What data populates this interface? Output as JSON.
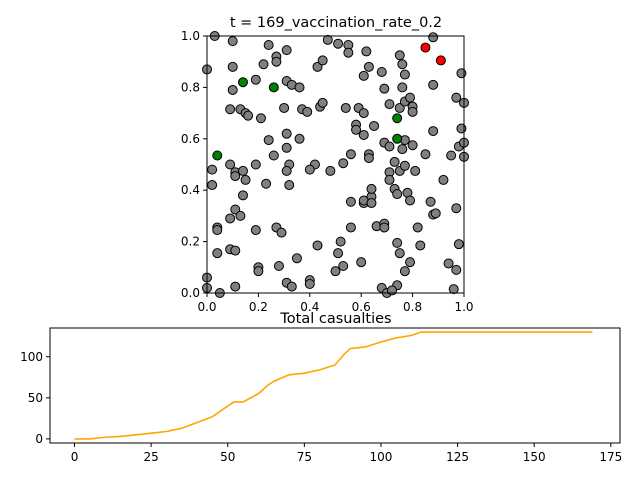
{
  "chart_data": [
    {
      "type": "scatter",
      "title": "t = 169_vaccination_rate_0.2",
      "xlim": [
        0,
        1
      ],
      "ylim": [
        0,
        1
      ],
      "xticks": [
        "0.0",
        "0.2",
        "0.4",
        "0.6",
        "0.8",
        "1.0"
      ],
      "yticks": [
        "0.0",
        "0.2",
        "0.4",
        "0.6",
        "0.8",
        "1.0"
      ],
      "grid": false,
      "colors": {
        "susceptible": "#808080",
        "vaccinated": "#008000",
        "infected": "#ff0000"
      },
      "infected": [
        [
          0.85,
          0.955
        ],
        [
          0.91,
          0.905
        ]
      ],
      "vaccinated": [
        [
          0.14,
          0.82
        ],
        [
          0.26,
          0.8
        ],
        [
          0.74,
          0.68
        ],
        [
          0.04,
          0.535
        ],
        [
          0.74,
          0.6
        ]
      ],
      "susceptible": [
        [
          0.0,
          0.87
        ],
        [
          0.03,
          1.0
        ],
        [
          0.1,
          0.98
        ],
        [
          0.1,
          0.88
        ],
        [
          0.1,
          0.79
        ],
        [
          0.09,
          0.715
        ],
        [
          0.13,
          0.715
        ],
        [
          0.15,
          0.7
        ],
        [
          0.16,
          0.69
        ],
        [
          0.19,
          0.83
        ],
        [
          0.22,
          0.89
        ],
        [
          0.24,
          0.965
        ],
        [
          0.27,
          0.92
        ],
        [
          0.27,
          0.9
        ],
        [
          0.31,
          0.945
        ],
        [
          0.31,
          0.825
        ],
        [
          0.33,
          0.81
        ],
        [
          0.36,
          0.8
        ],
        [
          0.3,
          0.72
        ],
        [
          0.21,
          0.68
        ],
        [
          0.24,
          0.595
        ],
        [
          0.26,
          0.535
        ],
        [
          0.31,
          0.62
        ],
        [
          0.31,
          0.565
        ],
        [
          0.32,
          0.5
        ],
        [
          0.31,
          0.475
        ],
        [
          0.32,
          0.42
        ],
        [
          0.36,
          0.6
        ],
        [
          0.37,
          0.715
        ],
        [
          0.39,
          0.705
        ],
        [
          0.43,
          0.88
        ],
        [
          0.45,
          0.905
        ],
        [
          0.44,
          0.725
        ],
        [
          0.45,
          0.74
        ],
        [
          0.47,
          0.985
        ],
        [
          0.51,
          0.97
        ],
        [
          0.55,
          0.965
        ],
        [
          0.55,
          0.935
        ],
        [
          0.62,
          0.94
        ],
        [
          0.63,
          0.88
        ],
        [
          0.61,
          0.845
        ],
        [
          0.54,
          0.72
        ],
        [
          0.59,
          0.72
        ],
        [
          0.58,
          0.655
        ],
        [
          0.58,
          0.635
        ],
        [
          0.61,
          0.7
        ],
        [
          0.61,
          0.615
        ],
        [
          0.65,
          0.65
        ],
        [
          0.68,
          0.86
        ],
        [
          0.69,
          0.795
        ],
        [
          0.71,
          0.735
        ],
        [
          0.75,
          0.925
        ],
        [
          0.76,
          0.89
        ],
        [
          0.77,
          0.85
        ],
        [
          0.76,
          0.8
        ],
        [
          0.75,
          0.72
        ],
        [
          0.77,
          0.745
        ],
        [
          0.79,
          0.76
        ],
        [
          0.8,
          0.725
        ],
        [
          0.8,
          0.705
        ],
        [
          0.77,
          0.595
        ],
        [
          0.76,
          0.56
        ],
        [
          0.8,
          0.575
        ],
        [
          0.88,
          0.81
        ],
        [
          0.88,
          0.995
        ],
        [
          0.99,
          0.855
        ],
        [
          0.97,
          0.76
        ],
        [
          1.0,
          0.74
        ],
        [
          0.99,
          0.64
        ],
        [
          0.98,
          0.57
        ],
        [
          1.0,
          0.585
        ],
        [
          0.95,
          0.535
        ],
        [
          1.0,
          0.53
        ],
        [
          0.88,
          0.63
        ],
        [
          0.85,
          0.54
        ],
        [
          0.92,
          0.44
        ],
        [
          0.87,
          0.355
        ],
        [
          0.88,
          0.305
        ],
        [
          0.89,
          0.31
        ],
        [
          0.97,
          0.33
        ],
        [
          0.98,
          0.19
        ],
        [
          0.94,
          0.115
        ],
        [
          0.97,
          0.09
        ],
        [
          0.96,
          0.015
        ],
        [
          0.0,
          0.06
        ],
        [
          0.0,
          0.02
        ],
        [
          0.02,
          0.48
        ],
        [
          0.02,
          0.42
        ],
        [
          0.04,
          0.255
        ],
        [
          0.04,
          0.245
        ],
        [
          0.04,
          0.155
        ],
        [
          0.05,
          0.0
        ],
        [
          0.09,
          0.5
        ],
        [
          0.11,
          0.47
        ],
        [
          0.11,
          0.455
        ],
        [
          0.14,
          0.475
        ],
        [
          0.15,
          0.44
        ],
        [
          0.14,
          0.38
        ],
        [
          0.11,
          0.325
        ],
        [
          0.13,
          0.3
        ],
        [
          0.09,
          0.29
        ],
        [
          0.09,
          0.17
        ],
        [
          0.11,
          0.165
        ],
        [
          0.11,
          0.025
        ],
        [
          0.19,
          0.5
        ],
        [
          0.23,
          0.425
        ],
        [
          0.19,
          0.245
        ],
        [
          0.2,
          0.1
        ],
        [
          0.2,
          0.085
        ],
        [
          0.27,
          0.255
        ],
        [
          0.29,
          0.235
        ],
        [
          0.28,
          0.105
        ],
        [
          0.35,
          0.135
        ],
        [
          0.31,
          0.04
        ],
        [
          0.33,
          0.025
        ],
        [
          0.4,
          0.05
        ],
        [
          0.4,
          0.035
        ],
        [
          0.43,
          0.185
        ],
        [
          0.42,
          0.5
        ],
        [
          0.4,
          0.48
        ],
        [
          0.48,
          0.475
        ],
        [
          0.53,
          0.505
        ],
        [
          0.56,
          0.54
        ],
        [
          0.56,
          0.355
        ],
        [
          0.6,
          0.12
        ],
        [
          0.61,
          0.35
        ],
        [
          0.61,
          0.36
        ],
        [
          0.64,
          0.375
        ],
        [
          0.64,
          0.405
        ],
        [
          0.64,
          0.35
        ],
        [
          0.66,
          0.26
        ],
        [
          0.69,
          0.27
        ],
        [
          0.69,
          0.255
        ],
        [
          0.56,
          0.255
        ],
        [
          0.52,
          0.2
        ],
        [
          0.51,
          0.155
        ],
        [
          0.5,
          0.085
        ],
        [
          0.53,
          0.105
        ],
        [
          0.68,
          0.02
        ],
        [
          0.7,
          0.0
        ],
        [
          0.69,
          0.585
        ],
        [
          0.71,
          0.57
        ],
        [
          0.73,
          0.51
        ],
        [
          0.71,
          0.47
        ],
        [
          0.71,
          0.44
        ],
        [
          0.73,
          0.405
        ],
        [
          0.74,
          0.385
        ],
        [
          0.75,
          0.475
        ],
        [
          0.77,
          0.495
        ],
        [
          0.78,
          0.39
        ],
        [
          0.79,
          0.36
        ],
        [
          0.81,
          0.475
        ],
        [
          0.74,
          0.195
        ],
        [
          0.75,
          0.155
        ],
        [
          0.77,
          0.085
        ],
        [
          0.79,
          0.12
        ],
        [
          0.74,
          0.03
        ],
        [
          0.72,
          0.01
        ],
        [
          0.82,
          0.255
        ],
        [
          0.83,
          0.185
        ],
        [
          0.63,
          0.54
        ],
        [
          0.63,
          0.525
        ]
      ]
    },
    {
      "type": "line",
      "title": "Total casualties",
      "xlim": [
        -8,
        178
      ],
      "ylim": [
        -5,
        135
      ],
      "xticks": [
        0,
        25,
        50,
        75,
        100,
        125,
        150,
        175
      ],
      "yticks": [
        0,
        50,
        100
      ],
      "grid": false,
      "color": "#ffa500",
      "x": [
        0,
        5,
        10,
        15,
        20,
        25,
        30,
        35,
        40,
        45,
        50,
        52,
        55,
        60,
        63,
        65,
        70,
        75,
        80,
        85,
        88,
        90,
        95,
        100,
        105,
        110,
        113,
        120,
        130,
        140,
        150,
        160,
        169
      ],
      "y": [
        0,
        0,
        2,
        3,
        5,
        7,
        9,
        13,
        20,
        27,
        40,
        45,
        45,
        55,
        65,
        70,
        78,
        80,
        84,
        90,
        103,
        110,
        112,
        118,
        123,
        126,
        130,
        130,
        130,
        130,
        130,
        130,
        130
      ]
    }
  ]
}
